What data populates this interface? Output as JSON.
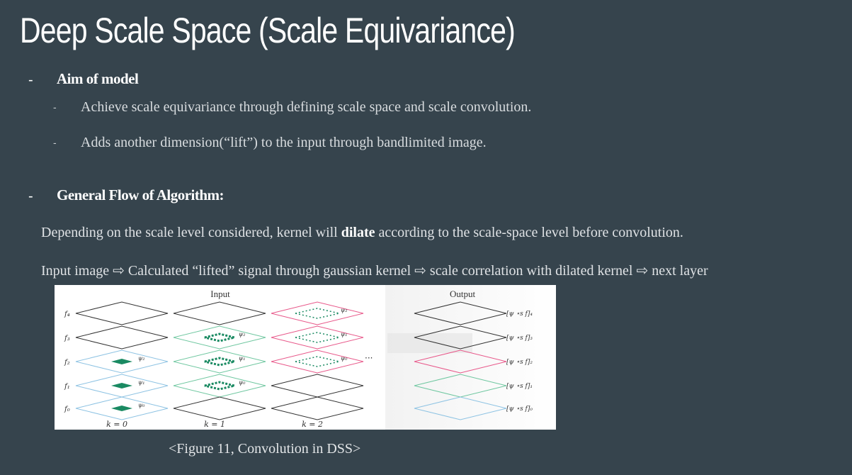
{
  "slide": {
    "title": "Deep Scale Space (Scale Equivariance)",
    "sections": [
      {
        "dash": "-",
        "heading": "Aim of model",
        "items": [
          {
            "dash": "-",
            "text": "Achieve scale equivariance through defining scale space and scale convolution."
          },
          {
            "dash": "-",
            "text": "Adds another dimension(“lift”) to the input through bandlimited image."
          }
        ]
      },
      {
        "dash": "-",
        "heading": "General Flow of Algorithm:"
      }
    ],
    "paragraph1": {
      "before": "Depending on the scale level considered, kernel will ",
      "bold": "dilate",
      "after": " according to the scale-space level before convolution."
    },
    "paragraph2": "Input image ⇨ Calculated “lifted” signal through gaussian kernel ⇨ scale correlation with dilated kernel ⇨ next layer",
    "figure": {
      "input_label": "Input",
      "output_label": "Output",
      "f_labels": [
        "f₄",
        "f₃",
        "f₂",
        "f₁",
        "f₀"
      ],
      "k_labels": [
        "k = 0",
        "k = 1",
        "k = 2"
      ],
      "psi_col0": [
        "ψ₂",
        "ψ₁",
        "ψ₀"
      ],
      "psi_col1": [
        "ψ₂",
        "ψ₁",
        "ψ₀"
      ],
      "psi_col2": [
        "ψ₂",
        "ψ₁",
        "ψ₀"
      ],
      "ellipsis": "···",
      "output_labels": [
        "[ψ ⋆s f]₄",
        "[ψ ⋆s f]₃",
        "[ψ ⋆s f]₂",
        "[ψ ⋆s f]₁",
        "[ψ ⋆s f]₀"
      ],
      "colors": {
        "black": "#333333",
        "green": "#6fc7a0",
        "blue": "#8ec3e3",
        "pink": "#e8588a",
        "fill": "#1a8a62"
      }
    },
    "caption": "<Figure 11, Convolution in DSS>"
  }
}
